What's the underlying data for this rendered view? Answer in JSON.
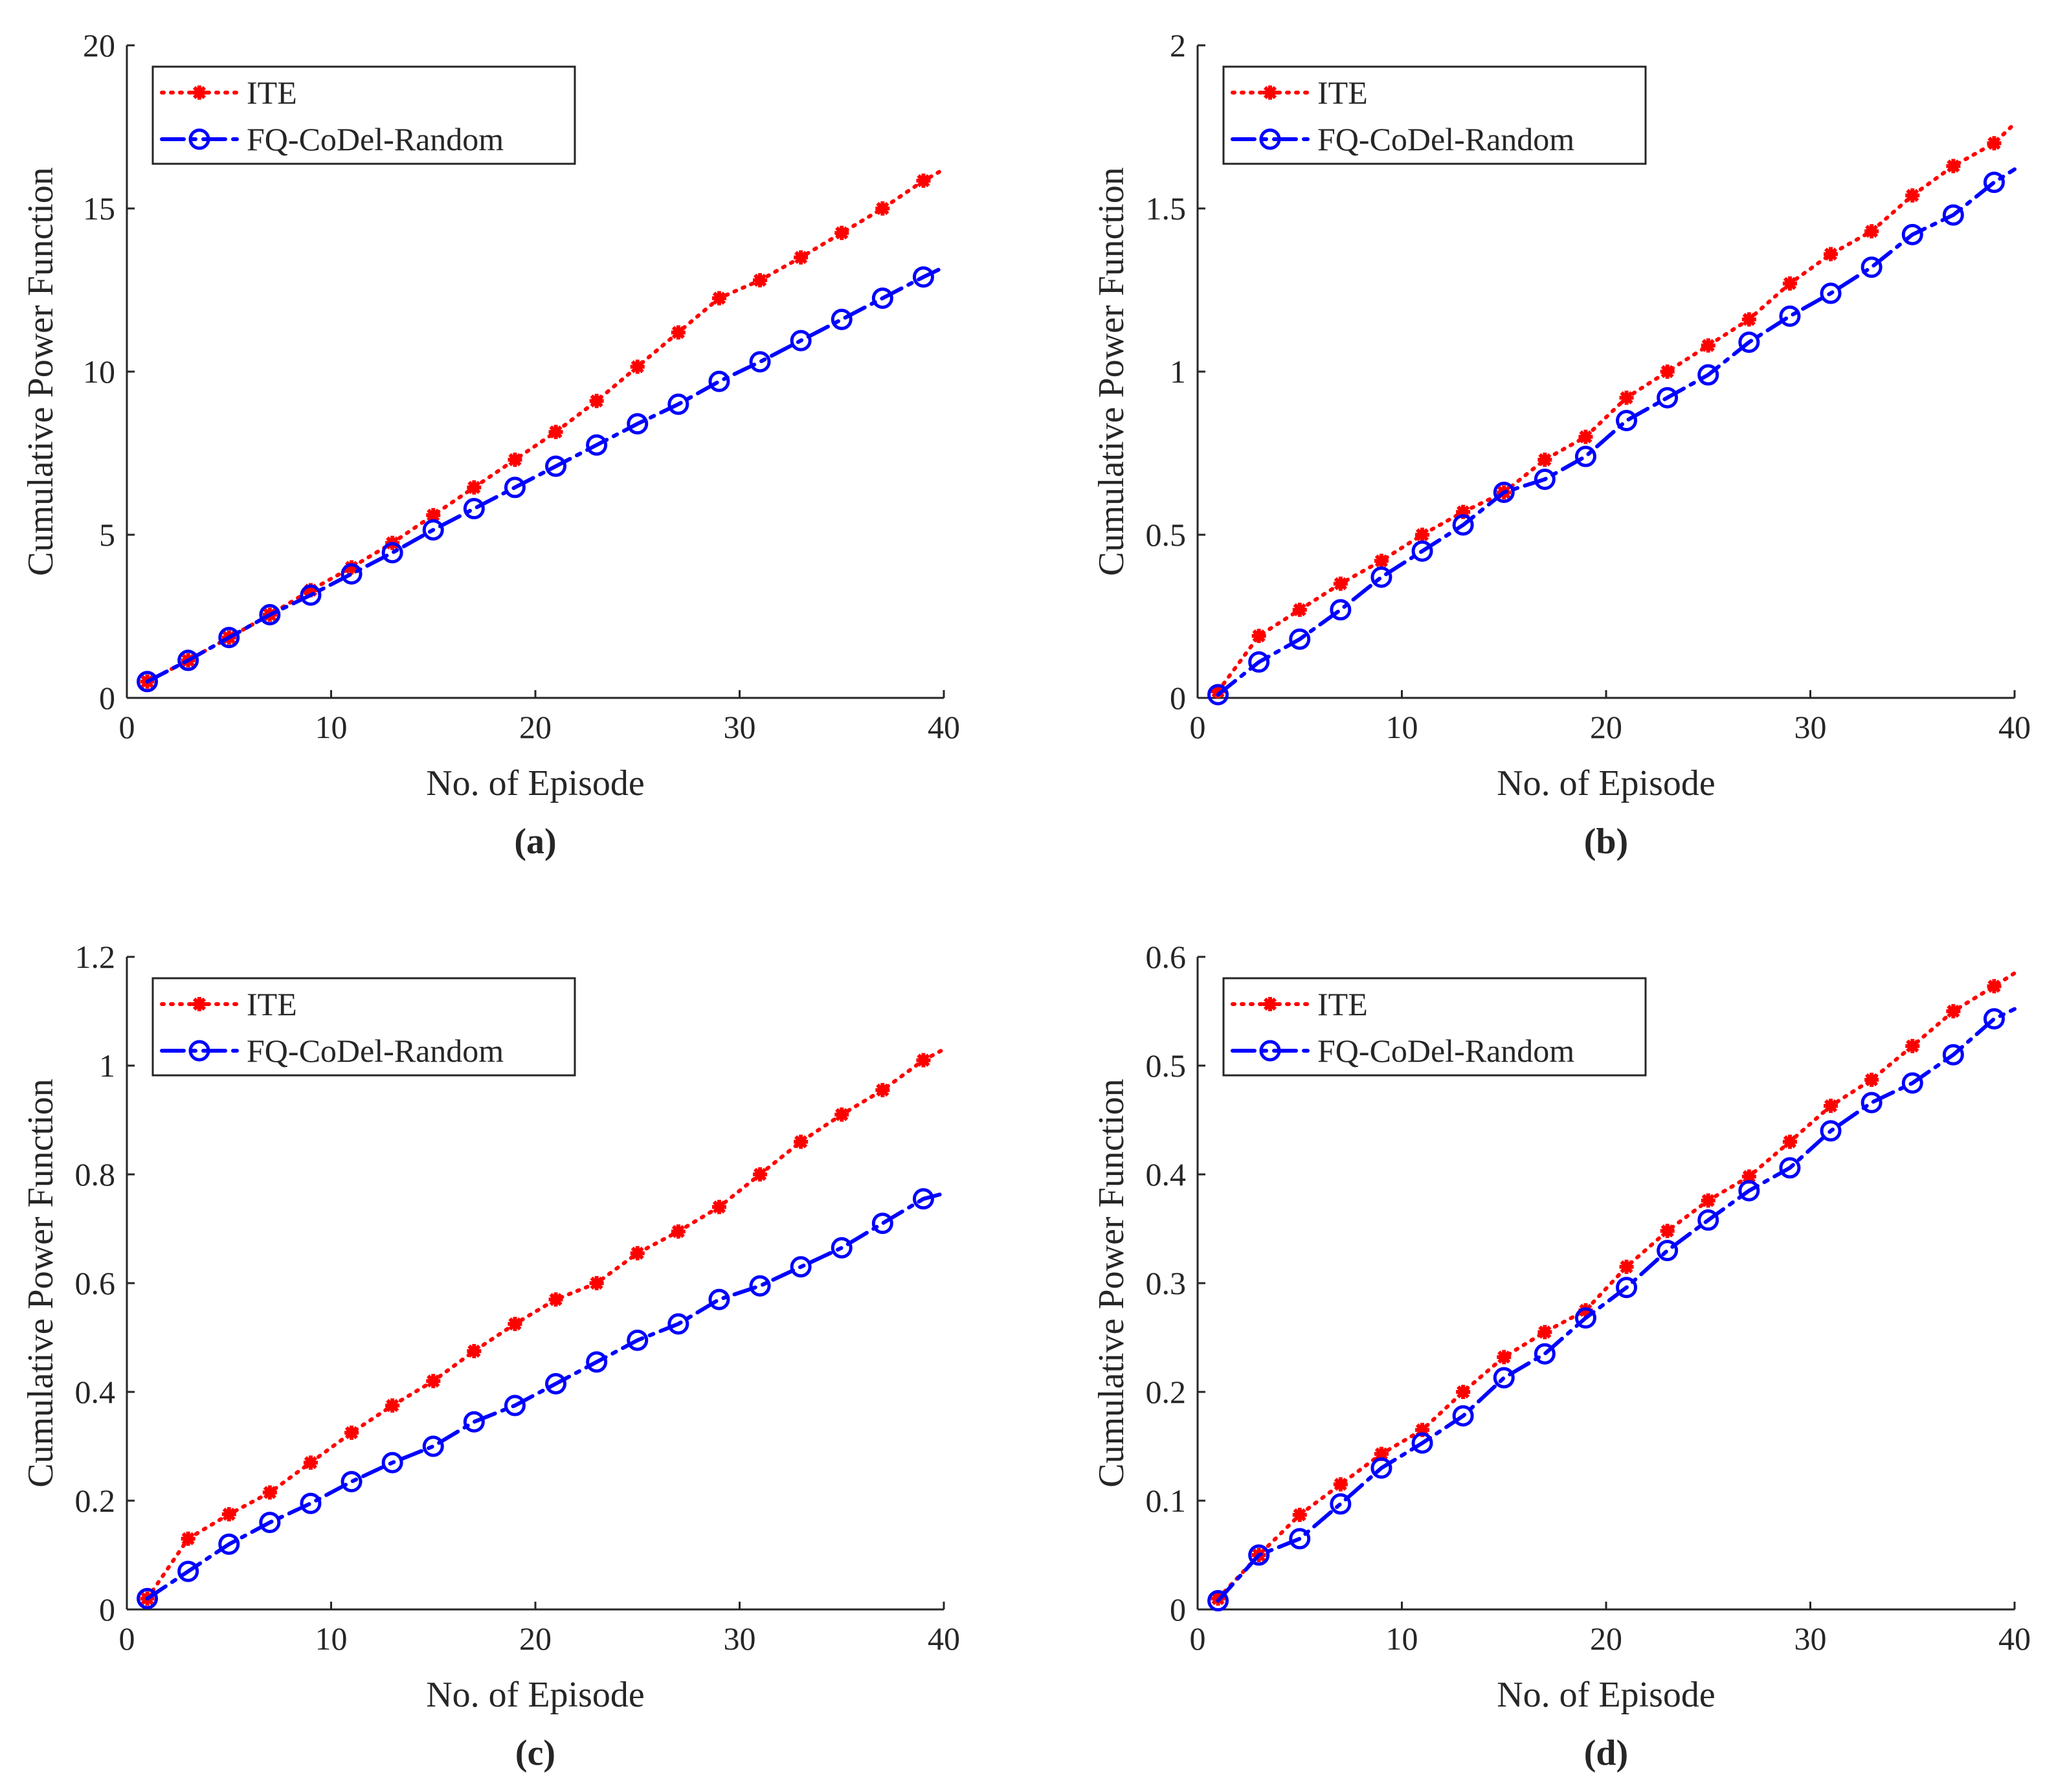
{
  "chart_data": [
    {
      "type": "line",
      "caption": "(a)",
      "xlabel": "No. of Episode",
      "ylabel": "Cumulative Power Function",
      "xlim": [
        0,
        40
      ],
      "ylim": [
        0,
        20
      ],
      "xticks": [
        0,
        10,
        20,
        30,
        40
      ],
      "xtick_labels": [
        "0",
        "10",
        "20",
        "30",
        "40"
      ],
      "yticks": [
        0,
        5,
        10,
        15,
        20
      ],
      "ytick_labels": [
        "0",
        "5",
        "10",
        "15",
        "20"
      ],
      "legend_position": "top-left",
      "series": [
        {
          "name": "ITE",
          "color": "#ff0000",
          "marker": "asterisk",
          "style": "dotted",
          "x": [
            1,
            3,
            5,
            7,
            9,
            11,
            13,
            15,
            17,
            19,
            21,
            23,
            25,
            27,
            29,
            31,
            33,
            35,
            37,
            39,
            40
          ],
          "y": [
            0.5,
            1.15,
            1.85,
            2.55,
            3.3,
            4.0,
            4.75,
            5.6,
            6.45,
            7.3,
            8.15,
            9.1,
            10.15,
            11.2,
            12.25,
            12.8,
            13.5,
            14.25,
            15.0,
            15.85,
            16.2
          ]
        },
        {
          "name": "FQ-CoDel-Random",
          "color": "#0000ff",
          "marker": "circle",
          "style": "dashdot",
          "x": [
            1,
            3,
            5,
            7,
            9,
            11,
            13,
            15,
            17,
            19,
            21,
            23,
            25,
            27,
            29,
            31,
            33,
            35,
            37,
            39,
            40
          ],
          "y": [
            0.5,
            1.15,
            1.85,
            2.55,
            3.15,
            3.8,
            4.45,
            5.15,
            5.8,
            6.45,
            7.1,
            7.75,
            8.4,
            9.0,
            9.7,
            10.3,
            10.95,
            11.6,
            12.25,
            12.9,
            13.2
          ]
        }
      ]
    },
    {
      "type": "line",
      "caption": "(b)",
      "xlabel": "No. of Episode",
      "ylabel": "Cumulative Power Function",
      "xlim": [
        0,
        40
      ],
      "ylim": [
        0,
        2
      ],
      "xticks": [
        0,
        10,
        20,
        30,
        40
      ],
      "xtick_labels": [
        "0",
        "10",
        "20",
        "30",
        "40"
      ],
      "yticks": [
        0,
        0.5,
        1,
        1.5,
        2
      ],
      "ytick_labels": [
        "0",
        "0.5",
        "1",
        "1.5",
        "2"
      ],
      "legend_position": "top-left",
      "series": [
        {
          "name": "ITE",
          "color": "#ff0000",
          "marker": "asterisk",
          "style": "dotted",
          "x": [
            1,
            3,
            5,
            7,
            9,
            11,
            13,
            15,
            17,
            19,
            21,
            23,
            25,
            27,
            29,
            31,
            33,
            35,
            37,
            39,
            40
          ],
          "y": [
            0.02,
            0.19,
            0.27,
            0.35,
            0.42,
            0.5,
            0.57,
            0.63,
            0.73,
            0.8,
            0.92,
            1.0,
            1.08,
            1.16,
            1.27,
            1.36,
            1.43,
            1.54,
            1.63,
            1.7,
            1.76
          ]
        },
        {
          "name": "FQ-CoDel-Random",
          "color": "#0000ff",
          "marker": "circle",
          "style": "dashdot",
          "x": [
            1,
            3,
            5,
            7,
            9,
            11,
            13,
            15,
            17,
            19,
            21,
            23,
            25,
            27,
            29,
            31,
            33,
            35,
            37,
            39,
            40
          ],
          "y": [
            0.01,
            0.11,
            0.18,
            0.27,
            0.37,
            0.45,
            0.53,
            0.63,
            0.67,
            0.74,
            0.85,
            0.92,
            0.99,
            1.09,
            1.17,
            1.24,
            1.32,
            1.42,
            1.48,
            1.58,
            1.62
          ]
        }
      ]
    },
    {
      "type": "line",
      "caption": "(c)",
      "xlabel": "No. of Episode",
      "ylabel": "Cumulative Power Function",
      "xlim": [
        0,
        40
      ],
      "ylim": [
        0,
        1.2
      ],
      "xticks": [
        0,
        10,
        20,
        30,
        40
      ],
      "xtick_labels": [
        "0",
        "10",
        "20",
        "30",
        "40"
      ],
      "yticks": [
        0,
        0.2,
        0.4,
        0.6,
        0.8,
        1,
        1.2
      ],
      "ytick_labels": [
        "0",
        "0.2",
        "0.4",
        "0.6",
        "0.8",
        "1",
        "1.2"
      ],
      "legend_position": "top-left",
      "series": [
        {
          "name": "ITE",
          "color": "#ff0000",
          "marker": "asterisk",
          "style": "dotted",
          "x": [
            1,
            3,
            5,
            7,
            9,
            11,
            13,
            15,
            17,
            19,
            21,
            23,
            25,
            27,
            29,
            31,
            33,
            35,
            37,
            39,
            40
          ],
          "y": [
            0.02,
            0.13,
            0.175,
            0.215,
            0.27,
            0.325,
            0.375,
            0.42,
            0.475,
            0.525,
            0.57,
            0.6,
            0.655,
            0.695,
            0.74,
            0.8,
            0.86,
            0.91,
            0.955,
            1.01,
            1.03
          ]
        },
        {
          "name": "FQ-CoDel-Random",
          "color": "#0000ff",
          "marker": "circle",
          "style": "dashdot",
          "x": [
            1,
            3,
            5,
            7,
            9,
            11,
            13,
            15,
            17,
            19,
            21,
            23,
            25,
            27,
            29,
            31,
            33,
            35,
            37,
            39,
            40
          ],
          "y": [
            0.02,
            0.07,
            0.12,
            0.16,
            0.195,
            0.235,
            0.27,
            0.3,
            0.345,
            0.375,
            0.415,
            0.455,
            0.495,
            0.525,
            0.57,
            0.595,
            0.63,
            0.665,
            0.71,
            0.755,
            0.765
          ]
        }
      ]
    },
    {
      "type": "line",
      "caption": "(d)",
      "xlabel": "No. of Episode",
      "ylabel": "Cumulative Power Function",
      "xlim": [
        0,
        40
      ],
      "ylim": [
        0,
        0.6
      ],
      "xticks": [
        0,
        10,
        20,
        30,
        40
      ],
      "xtick_labels": [
        "0",
        "10",
        "20",
        "30",
        "40"
      ],
      "yticks": [
        0,
        0.1,
        0.2,
        0.3,
        0.4,
        0.5,
        0.6
      ],
      "ytick_labels": [
        "0",
        "0.1",
        "0.2",
        "0.3",
        "0.4",
        "0.5",
        "0.6"
      ],
      "legend_position": "top-left",
      "series": [
        {
          "name": "ITE",
          "color": "#ff0000",
          "marker": "asterisk",
          "style": "dotted",
          "x": [
            1,
            3,
            5,
            7,
            9,
            11,
            13,
            15,
            17,
            19,
            21,
            23,
            25,
            27,
            29,
            31,
            33,
            35,
            37,
            39,
            40
          ],
          "y": [
            0.01,
            0.05,
            0.087,
            0.115,
            0.143,
            0.165,
            0.2,
            0.232,
            0.255,
            0.275,
            0.315,
            0.348,
            0.376,
            0.398,
            0.43,
            0.463,
            0.487,
            0.518,
            0.55,
            0.573,
            0.585
          ]
        },
        {
          "name": "FQ-CoDel-Random",
          "color": "#0000ff",
          "marker": "circle",
          "style": "dashdot",
          "x": [
            1,
            3,
            5,
            7,
            9,
            11,
            13,
            15,
            17,
            19,
            21,
            23,
            25,
            27,
            29,
            31,
            33,
            35,
            37,
            39,
            40
          ],
          "y": [
            0.008,
            0.05,
            0.065,
            0.097,
            0.13,
            0.153,
            0.178,
            0.213,
            0.235,
            0.268,
            0.296,
            0.33,
            0.358,
            0.385,
            0.406,
            0.44,
            0.466,
            0.484,
            0.51,
            0.543,
            0.552
          ]
        }
      ]
    }
  ]
}
